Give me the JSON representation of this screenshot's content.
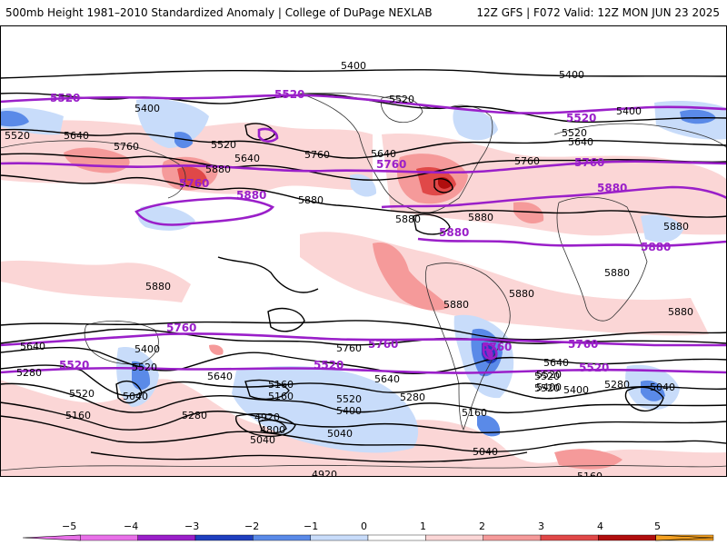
{
  "header": {
    "left_title": "500mb Height 1981–2010 Standardized Anomaly | College of DuPage NEXLAB",
    "right_title": "12Z GFS | F072 Valid: 12Z MON JUN 23 2025"
  },
  "map": {
    "height_labels_black": [
      "5400",
      "5400",
      "5520",
      "5400",
      "5520",
      "5640",
      "5760",
      "5520",
      "5640",
      "5880",
      "5760",
      "5880",
      "5880",
      "5880",
      "5880",
      "5880",
      "5880",
      "5640",
      "5520",
      "5400",
      "5640",
      "5760",
      "5640",
      "5520",
      "5640",
      "5520",
      "5520",
      "5640",
      "5280",
      "5520",
      "5400",
      "5040",
      "5160",
      "5280",
      "5520",
      "5040",
      "4920",
      "4800",
      "5160",
      "5400",
      "5280",
      "5760",
      "5640",
      "5520",
      "5400",
      "5160",
      "5040",
      "5040",
      "5160",
      "4920",
      "5040",
      "5040",
      "5160",
      "5280",
      "5400",
      "5880",
      "5880",
      "5880"
    ],
    "height_labels_purple": [
      "5520",
      "5520",
      "5520",
      "5760",
      "5760",
      "5760",
      "5880",
      "5880",
      "5880",
      "5880",
      "5760",
      "5760",
      "5760",
      "5520",
      "5520",
      "5520",
      "5760"
    ],
    "anomaly_colors": {
      "neg5": "#e870e8",
      "neg4": "#9a1fc9",
      "neg3": "#1f3fbf",
      "neg2": "#5a8ae8",
      "neg1": "#c8dcfa",
      "zero": "#ffffff",
      "pos1": "#fbd6d6",
      "pos2": "#f59a9a",
      "pos3": "#e04848",
      "pos4": "#b00e0e",
      "pos5": "#f4a020"
    }
  },
  "colorbar": {
    "ticks": [
      "−5",
      "−4",
      "−3",
      "−2",
      "−1",
      "0",
      "1",
      "2",
      "3",
      "4",
      "5"
    ]
  }
}
